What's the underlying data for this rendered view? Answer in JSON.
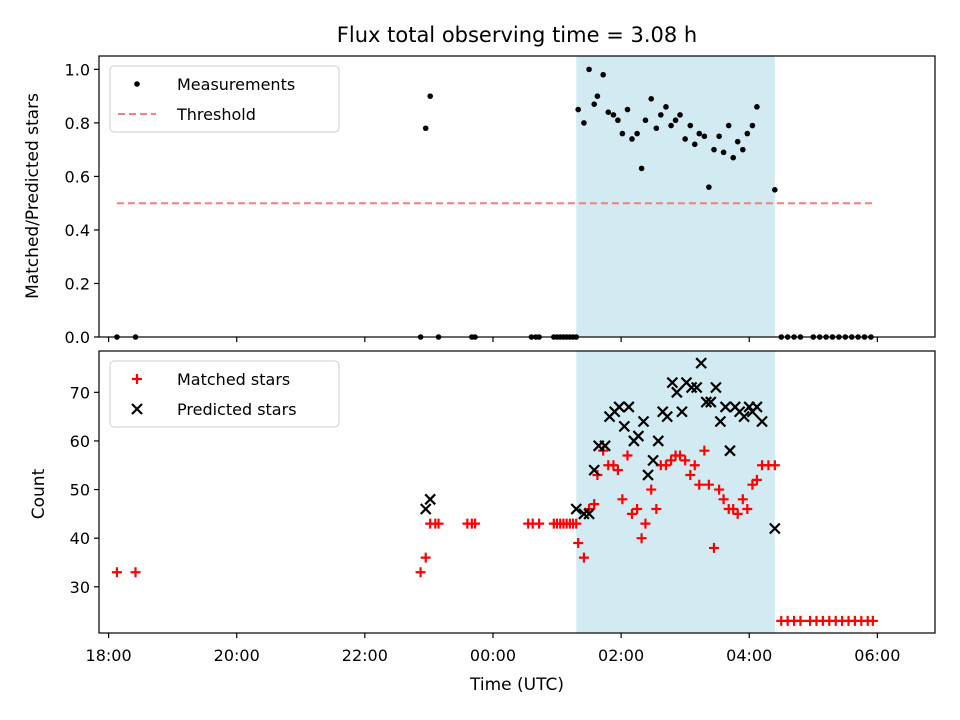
{
  "title": "Flux total observing time = 3.08 h",
  "colors": {
    "span": "#add8e6",
    "threshold": "#f08080",
    "matched": "#ff0000",
    "predicted": "#000000",
    "measurement": "#000000"
  },
  "chart_data": [
    {
      "type": "scatter",
      "ylabel": "Matched/Predicted stars",
      "xlim": [
        -0.15,
        12.9
      ],
      "ylim": [
        0,
        1.05
      ],
      "yticks": [
        0.0,
        0.2,
        0.4,
        0.6,
        0.8,
        1.0
      ],
      "ytick_labels": [
        "0.0",
        "0.2",
        "0.4",
        "0.6",
        "0.8",
        "1.0"
      ],
      "observing_span": [
        7.3,
        10.4
      ],
      "legend_position": "upper-left",
      "series": [
        {
          "name": "Measurements",
          "kind": "dot",
          "points": [
            [
              0.13,
              0
            ],
            [
              0.42,
              0
            ],
            [
              4.87,
              0
            ],
            [
              5.15,
              0
            ],
            [
              5.67,
              0
            ],
            [
              5.72,
              0
            ],
            [
              6.6,
              0
            ],
            [
              6.67,
              0
            ],
            [
              6.72,
              0
            ],
            [
              6.95,
              0
            ],
            [
              7.0,
              0
            ],
            [
              7.05,
              0
            ],
            [
              7.1,
              0
            ],
            [
              7.15,
              0
            ],
            [
              7.2,
              0
            ],
            [
              7.25,
              0
            ],
            [
              7.3,
              0
            ],
            [
              4.95,
              0.78
            ],
            [
              5.02,
              0.9
            ],
            [
              7.33,
              0.85
            ],
            [
              7.42,
              0.8
            ],
            [
              7.5,
              1.0
            ],
            [
              7.58,
              0.87
            ],
            [
              7.63,
              0.9
            ],
            [
              7.72,
              0.98
            ],
            [
              7.8,
              0.84
            ],
            [
              7.88,
              0.83
            ],
            [
              7.95,
              0.81
            ],
            [
              8.02,
              0.76
            ],
            [
              8.1,
              0.85
            ],
            [
              8.17,
              0.74
            ],
            [
              8.25,
              0.76
            ],
            [
              8.32,
              0.63
            ],
            [
              8.38,
              0.81
            ],
            [
              8.47,
              0.89
            ],
            [
              8.55,
              0.78
            ],
            [
              8.62,
              0.83
            ],
            [
              8.7,
              0.86
            ],
            [
              8.78,
              0.79
            ],
            [
              8.85,
              0.81
            ],
            [
              8.92,
              0.83
            ],
            [
              9.0,
              0.74
            ],
            [
              9.08,
              0.79
            ],
            [
              9.15,
              0.72
            ],
            [
              9.22,
              0.76
            ],
            [
              9.3,
              0.75
            ],
            [
              9.37,
              0.56
            ],
            [
              9.45,
              0.7
            ],
            [
              9.53,
              0.75
            ],
            [
              9.6,
              0.69
            ],
            [
              9.68,
              0.79
            ],
            [
              9.75,
              0.67
            ],
            [
              9.82,
              0.73
            ],
            [
              9.9,
              0.7
            ],
            [
              9.97,
              0.76
            ],
            [
              10.05,
              0.79
            ],
            [
              10.12,
              0.86
            ],
            [
              10.4,
              0.55
            ],
            [
              10.5,
              0
            ],
            [
              10.6,
              0
            ],
            [
              10.7,
              0
            ],
            [
              10.8,
              0
            ],
            [
              11.0,
              0
            ],
            [
              11.1,
              0
            ],
            [
              11.2,
              0
            ],
            [
              11.3,
              0
            ],
            [
              11.4,
              0
            ],
            [
              11.5,
              0
            ],
            [
              11.6,
              0
            ],
            [
              11.7,
              0
            ],
            [
              11.8,
              0
            ],
            [
              11.9,
              0
            ]
          ]
        },
        {
          "name": "Threshold",
          "kind": "dashed-line",
          "points": [
            [
              0.13,
              0.5
            ],
            [
              11.95,
              0.5
            ]
          ]
        }
      ]
    },
    {
      "type": "scatter",
      "ylabel": "Count",
      "xlabel": "Time (UTC)",
      "xlim": [
        -0.15,
        12.9
      ],
      "ylim": [
        20.5,
        78.5
      ],
      "yticks": [
        30,
        40,
        50,
        60,
        70
      ],
      "ytick_labels": [
        "30",
        "40",
        "50",
        "60",
        "70"
      ],
      "xticks": [
        0,
        2,
        4,
        6,
        8,
        10,
        12
      ],
      "xtick_labels": [
        "18:00",
        "20:00",
        "22:00",
        "00:00",
        "02:00",
        "04:00",
        "06:00"
      ],
      "observing_span": [
        7.3,
        10.4
      ],
      "legend_position": "upper-left",
      "series": [
        {
          "name": "Matched stars",
          "kind": "plus",
          "points": [
            [
              0.13,
              33
            ],
            [
              0.42,
              33
            ],
            [
              4.87,
              33
            ],
            [
              4.95,
              36
            ],
            [
              5.02,
              43
            ],
            [
              5.1,
              43
            ],
            [
              5.15,
              43
            ],
            [
              5.6,
              43
            ],
            [
              5.67,
              43
            ],
            [
              5.72,
              43
            ],
            [
              6.55,
              43
            ],
            [
              6.62,
              43
            ],
            [
              6.72,
              43
            ],
            [
              6.95,
              43
            ],
            [
              7.0,
              43
            ],
            [
              7.05,
              43
            ],
            [
              7.1,
              43
            ],
            [
              7.15,
              43
            ],
            [
              7.2,
              43
            ],
            [
              7.25,
              43
            ],
            [
              7.3,
              43
            ],
            [
              7.33,
              39
            ],
            [
              7.42,
              36
            ],
            [
              7.5,
              46
            ],
            [
              7.58,
              47
            ],
            [
              7.63,
              53
            ],
            [
              7.72,
              58
            ],
            [
              7.8,
              55
            ],
            [
              7.88,
              55
            ],
            [
              7.95,
              54
            ],
            [
              8.02,
              48
            ],
            [
              8.1,
              57
            ],
            [
              8.17,
              45
            ],
            [
              8.25,
              46
            ],
            [
              8.32,
              40
            ],
            [
              8.38,
              43
            ],
            [
              8.47,
              50
            ],
            [
              8.55,
              46
            ],
            [
              8.62,
              55
            ],
            [
              8.7,
              55
            ],
            [
              8.78,
              56
            ],
            [
              8.85,
              57
            ],
            [
              8.92,
              57
            ],
            [
              9.0,
              56
            ],
            [
              9.08,
              53
            ],
            [
              9.15,
              55
            ],
            [
              9.22,
              51
            ],
            [
              9.3,
              58
            ],
            [
              9.37,
              51
            ],
            [
              9.45,
              38
            ],
            [
              9.53,
              50
            ],
            [
              9.6,
              48
            ],
            [
              9.68,
              46
            ],
            [
              9.75,
              46
            ],
            [
              9.82,
              45
            ],
            [
              9.9,
              48
            ],
            [
              9.97,
              46
            ],
            [
              10.05,
              51
            ],
            [
              10.12,
              52
            ],
            [
              10.2,
              55
            ],
            [
              10.3,
              55
            ],
            [
              10.4,
              55
            ],
            [
              10.5,
              23
            ],
            [
              10.6,
              23
            ],
            [
              10.7,
              23
            ],
            [
              10.8,
              23
            ],
            [
              10.95,
              23
            ],
            [
              11.05,
              23
            ],
            [
              11.15,
              23
            ],
            [
              11.25,
              23
            ],
            [
              11.35,
              23
            ],
            [
              11.45,
              23
            ],
            [
              11.55,
              23
            ],
            [
              11.65,
              23
            ],
            [
              11.75,
              23
            ],
            [
              11.85,
              23
            ],
            [
              11.93,
              23
            ]
          ]
        },
        {
          "name": "Predicted stars",
          "kind": "x",
          "points": [
            [
              4.95,
              46
            ],
            [
              5.02,
              48
            ],
            [
              7.3,
              46
            ],
            [
              7.42,
              45
            ],
            [
              7.5,
              45
            ],
            [
              7.58,
              54
            ],
            [
              7.65,
              59
            ],
            [
              7.75,
              59
            ],
            [
              7.82,
              65
            ],
            [
              7.9,
              66
            ],
            [
              7.97,
              67
            ],
            [
              8.05,
              63
            ],
            [
              8.12,
              67
            ],
            [
              8.2,
              60
            ],
            [
              8.27,
              61
            ],
            [
              8.35,
              64
            ],
            [
              8.42,
              53
            ],
            [
              8.5,
              56
            ],
            [
              8.58,
              60
            ],
            [
              8.65,
              66
            ],
            [
              8.72,
              65
            ],
            [
              8.8,
              72
            ],
            [
              8.87,
              70
            ],
            [
              8.95,
              66
            ],
            [
              9.02,
              72
            ],
            [
              9.1,
              71
            ],
            [
              9.18,
              71
            ],
            [
              9.25,
              76
            ],
            [
              9.33,
              68
            ],
            [
              9.4,
              68
            ],
            [
              9.48,
              71
            ],
            [
              9.55,
              64
            ],
            [
              9.63,
              67
            ],
            [
              9.7,
              58
            ],
            [
              9.78,
              67
            ],
            [
              9.85,
              66
            ],
            [
              9.92,
              65
            ],
            [
              10.0,
              67
            ],
            [
              10.05,
              66
            ],
            [
              10.12,
              67
            ],
            [
              10.2,
              64
            ],
            [
              10.4,
              42
            ]
          ]
        }
      ]
    }
  ]
}
